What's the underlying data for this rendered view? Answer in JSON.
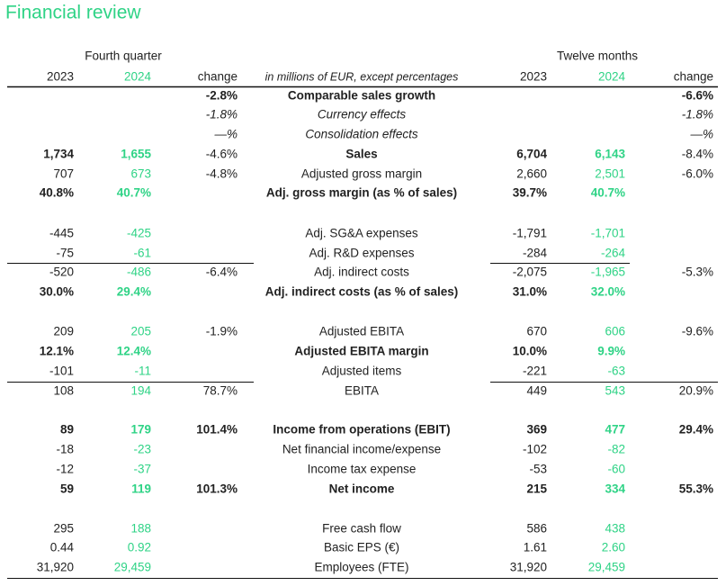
{
  "header": {
    "title": "Financial review"
  },
  "table": {
    "groups": [
      "Fourth quarter",
      "Twelve months"
    ],
    "columns": [
      "2023",
      "2024",
      "change",
      "in millions of EUR, except percentages",
      "2023",
      "2024",
      "change"
    ],
    "rows": [
      [
        null,
        null,
        "-2.8%",
        "Comparable sales growth",
        null,
        null,
        "-6.6%"
      ],
      [
        null,
        null,
        "-1.8%",
        "Currency effects",
        null,
        null,
        "-1.8%"
      ],
      [
        null,
        null,
        "—%",
        "Consolidation effects",
        null,
        null,
        "—%"
      ],
      [
        "1,734",
        "1,655",
        "-4.6%",
        "Sales",
        "6,704",
        "6,143",
        "-8.4%"
      ],
      [
        "707",
        "673",
        "-4.8%",
        "Adjusted gross margin",
        "2,660",
        "2,501",
        "-6.0%"
      ],
      [
        "40.8%",
        "40.7%",
        null,
        "Adj. gross margin (as % of sales)",
        "39.7%",
        "40.7%",
        null
      ],
      [
        "-445",
        "-425",
        null,
        "Adj. SG&A expenses",
        "-1,791",
        "-1,701",
        null
      ],
      [
        "-75",
        "-61",
        null,
        "Adj. R&D expenses",
        "-284",
        "-264",
        null
      ],
      [
        "-520",
        "-486",
        "-6.4%",
        "Adj. indirect costs",
        "-2,075",
        "-1,965",
        "-5.3%"
      ],
      [
        "30.0%",
        "29.4%",
        null,
        "Adj. indirect costs (as % of sales)",
        "31.0%",
        "32.0%",
        null
      ],
      [
        "209",
        "205",
        "-1.9%",
        "Adjusted EBITA",
        "670",
        "606",
        "-9.6%"
      ],
      [
        "12.1%",
        "12.4%",
        null,
        "Adjusted EBITA margin",
        "10.0%",
        "9.9%",
        null
      ],
      [
        "-101",
        "-11",
        null,
        "Adjusted items",
        "-221",
        "-63",
        null
      ],
      [
        "108",
        "194",
        "78.7%",
        "EBITA",
        "449",
        "543",
        "20.9%"
      ],
      [
        "89",
        "179",
        "101.4%",
        "Income from operations (EBIT)",
        "369",
        "477",
        "29.4%"
      ],
      [
        "-18",
        "-23",
        null,
        "Net financial income/expense",
        "-102",
        "-82",
        null
      ],
      [
        "-12",
        "-37",
        null,
        "Income tax expense",
        "-53",
        "-60",
        null
      ],
      [
        "59",
        "119",
        "101.3%",
        "Net income",
        "215",
        "334",
        "55.3%"
      ],
      [
        "295",
        "188",
        null,
        "Free cash flow",
        "586",
        "438",
        null
      ],
      [
        "0.44",
        "0.92",
        null,
        "Basic EPS (€)",
        "1.61",
        "2.60",
        null
      ],
      [
        "31,920",
        "29,459",
        null,
        "Employees (FTE)",
        "31,920",
        "29,459",
        null
      ]
    ]
  }
}
